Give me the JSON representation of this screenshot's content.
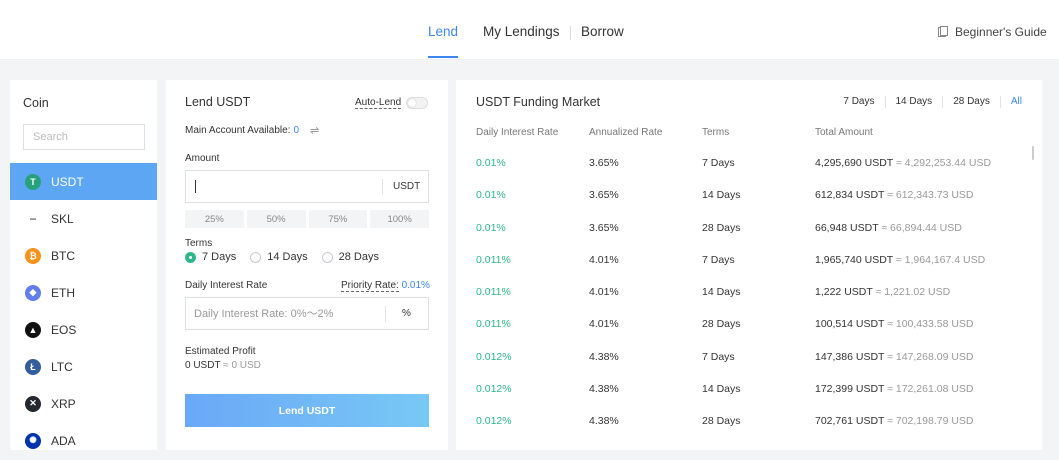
{
  "nav": {
    "tabs": [
      {
        "label": "Lend"
      },
      {
        "label": "My Lendings"
      },
      {
        "label": "Borrow"
      }
    ],
    "guide_label": "Beginner's Guide",
    "accent_color": "#3d86f4"
  },
  "coin_panel": {
    "title": "Coin",
    "search_placeholder": "Search",
    "coins": [
      {
        "symbol": "USDT",
        "icon": "usdt-icon",
        "active": true
      },
      {
        "symbol": "SKL",
        "icon": "skl-icon"
      },
      {
        "symbol": "BTC",
        "icon": "btc-icon"
      },
      {
        "symbol": "ETH",
        "icon": "eth-icon"
      },
      {
        "symbol": "EOS",
        "icon": "eos-icon"
      },
      {
        "symbol": "LTC",
        "icon": "ltc-icon"
      },
      {
        "symbol": "XRP",
        "icon": "xrp-icon"
      },
      {
        "symbol": "ADA",
        "icon": "ada-icon"
      }
    ]
  },
  "lend_panel": {
    "title": "Lend USDT",
    "auto_lend_label": "Auto-Lend",
    "available_label": "Main Account Available:",
    "available_value": "0",
    "amount_label": "Amount",
    "amount_value": "",
    "amount_unit": "USDT",
    "percent_buttons": [
      "25%",
      "50%",
      "75%",
      "100%"
    ],
    "terms_label": "Terms",
    "terms": [
      {
        "label": "7 Days",
        "checked": true
      },
      {
        "label": "14 Days",
        "checked": false
      },
      {
        "label": "28 Days",
        "checked": false
      }
    ],
    "rate_label": "Daily Interest Rate",
    "priority_label": "Priority Rate:",
    "priority_value": "0.01%",
    "rate_placeholder": "Daily Interest Rate: 0%～2%",
    "rate_unit": "%",
    "est_label": "Estimated Profit",
    "est_value": "0 USDT",
    "est_usd": "≈ 0 USD",
    "submit_label": "Lend USDT"
  },
  "market": {
    "title": "USDT Funding Market",
    "filters": [
      {
        "label": "7 Days",
        "active": false
      },
      {
        "label": "14 Days",
        "active": false
      },
      {
        "label": "28 Days",
        "active": false
      },
      {
        "label": "All",
        "active": true
      }
    ],
    "columns": [
      "Daily Interest Rate",
      "Annualized Rate",
      "Terms",
      "Total Amount"
    ],
    "rows": [
      {
        "rate": "0.01%",
        "annual": "3.65%",
        "term": "7 Days",
        "amount": "4,295,690 USDT",
        "usd": "≈ 4,292,253.44 USD"
      },
      {
        "rate": "0.01%",
        "annual": "3.65%",
        "term": "14 Days",
        "amount": "612,834 USDT",
        "usd": "≈ 612,343.73 USD"
      },
      {
        "rate": "0.01%",
        "annual": "3.65%",
        "term": "28 Days",
        "amount": "66,948 USDT",
        "usd": "≈ 66,894.44 USD"
      },
      {
        "rate": "0.011%",
        "annual": "4.01%",
        "term": "7 Days",
        "amount": "1,965,740 USDT",
        "usd": "≈ 1,964,167.4 USD"
      },
      {
        "rate": "0.011%",
        "annual": "4.01%",
        "term": "14 Days",
        "amount": "1,222 USDT",
        "usd": "≈ 1,221.02 USD"
      },
      {
        "rate": "0.011%",
        "annual": "4.01%",
        "term": "28 Days",
        "amount": "100,514 USDT",
        "usd": "≈ 100,433.58 USD"
      },
      {
        "rate": "0.012%",
        "annual": "4.38%",
        "term": "7 Days",
        "amount": "147,386 USDT",
        "usd": "≈ 147,268.09 USD"
      },
      {
        "rate": "0.012%",
        "annual": "4.38%",
        "term": "14 Days",
        "amount": "172,399 USDT",
        "usd": "≈ 172,261.08 USD"
      },
      {
        "rate": "0.012%",
        "annual": "4.38%",
        "term": "28 Days",
        "amount": "702,761 USDT",
        "usd": "≈ 702,198.79 USD"
      }
    ]
  }
}
